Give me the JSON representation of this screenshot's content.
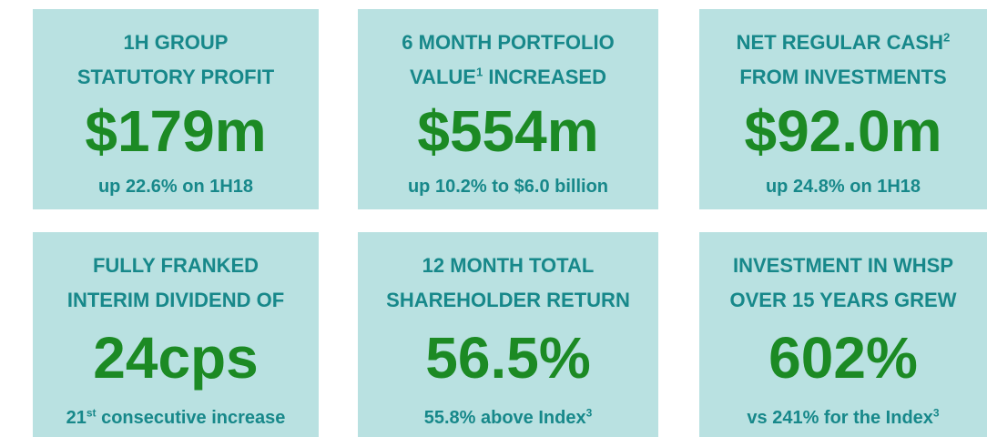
{
  "tiles": [
    {
      "heading": [
        [
          {
            "text": "1H GROUP"
          }
        ],
        [
          {
            "text": "STATUTORY PROFIT"
          }
        ]
      ],
      "value": "$179m",
      "note": [
        {
          "text": "up 22.6% on 1H18"
        }
      ]
    },
    {
      "heading": [
        [
          {
            "text": "6 MONTH PORTFOLIO"
          }
        ],
        [
          {
            "text": "VALUE"
          },
          {
            "sup": "1"
          },
          {
            "text": " INCREASED"
          }
        ]
      ],
      "value": "$554m",
      "note": [
        {
          "text": "up 10.2% to $6.0 billion"
        }
      ]
    },
    {
      "heading": [
        [
          {
            "text": "NET REGULAR CASH"
          },
          {
            "sup": "2"
          }
        ],
        [
          {
            "text": "FROM INVESTMENTS"
          }
        ]
      ],
      "value": "$92.0m",
      "note": [
        {
          "text": "up 24.8% on 1H18"
        }
      ]
    },
    {
      "heading": [
        [
          {
            "text": "FULLY FRANKED"
          }
        ],
        [
          {
            "text": "INTERIM DIVIDEND OF"
          }
        ]
      ],
      "value": "24cps",
      "note": [
        {
          "text": "21"
        },
        {
          "sup": "st"
        },
        {
          "text": " consecutive increase"
        }
      ]
    },
    {
      "heading": [
        [
          {
            "text": "12 MONTH TOTAL"
          }
        ],
        [
          {
            "text": "SHAREHOLDER RETURN"
          }
        ]
      ],
      "value": "56.5%",
      "note": [
        {
          "text": "55.8% above Index"
        },
        {
          "sup": "3"
        }
      ]
    },
    {
      "heading": [
        [
          {
            "text": "INVESTMENT IN WHSP"
          }
        ],
        [
          {
            "text": "OVER 15 YEARS GREW"
          }
        ]
      ],
      "value": "602%",
      "note": [
        {
          "text": "vs 241% for the Index"
        },
        {
          "sup": "3"
        }
      ]
    }
  ]
}
